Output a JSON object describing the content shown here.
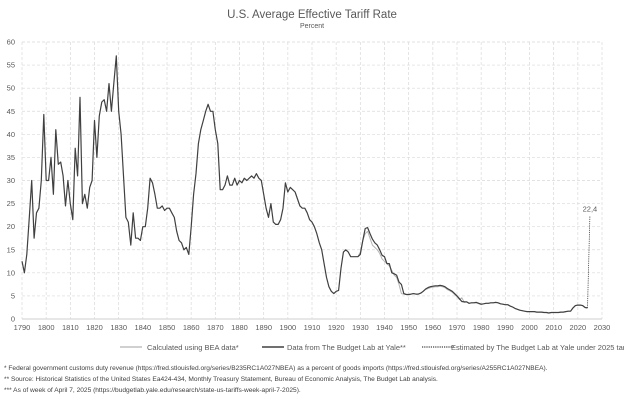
{
  "chart_data": {
    "type": "line",
    "title": "U.S. Average Effective Tariff Rate",
    "subtitle": "Percent",
    "xlim": [
      1790,
      2030
    ],
    "ylim": [
      0,
      60
    ],
    "x_ticks": [
      1790,
      1800,
      1810,
      1820,
      1830,
      1840,
      1850,
      1860,
      1870,
      1880,
      1890,
      1900,
      1910,
      1920,
      1930,
      1940,
      1950,
      1960,
      1970,
      1980,
      1990,
      2000,
      2010,
      2020,
      2030
    ],
    "y_ticks": [
      0,
      5,
      10,
      15,
      20,
      25,
      30,
      35,
      40,
      45,
      50,
      55,
      60
    ],
    "grid": true,
    "legend_position": "bottom",
    "colors": {
      "bea": "#b3b3b3",
      "yale": "#404040",
      "estimate": "#404040",
      "grid": "#d9d9d9"
    },
    "series": [
      {
        "name": "Calculated using BEA data*",
        "style": "solid-light",
        "start_year": 1929,
        "values": [
          13.5,
          14.5,
          17,
          18.5,
          19,
          17.5,
          16,
          15.5,
          15,
          14.2,
          13,
          12.5,
          12,
          11.5,
          10.5,
          9.5,
          9,
          7.5,
          5.5,
          5.4,
          5.3,
          5.3,
          5.4,
          5.5,
          5.4,
          5.4,
          5.6,
          6,
          6.4,
          6.6,
          6.8,
          6.9,
          7,
          7,
          7.1,
          7,
          6.8,
          6.4,
          6.1,
          5.8,
          5.3,
          4.8,
          4.2,
          4.6,
          3.6,
          3.7,
          3.4,
          3.5,
          3.5,
          3.5,
          3.3,
          3.1,
          3.3,
          3.4,
          3.4,
          3.5,
          3.5,
          3.6,
          3.5,
          3.3,
          3.2,
          3.1,
          3.1,
          2.8,
          2.6,
          2.3,
          2.1,
          1.9,
          1.8,
          1.7,
          1.6,
          1.6,
          1.6,
          1.6,
          1.5,
          1.5,
          1.5,
          1.4,
          1.4,
          1.3,
          1.4,
          1.4,
          1.4,
          1.4,
          1.5,
          1.5,
          1.6,
          1.7,
          1.7,
          2.4,
          2.9,
          3,
          3,
          2.9,
          2.5,
          2.4
        ]
      },
      {
        "name": "Data from The Budget Lab at Yale**",
        "style": "solid-dark",
        "start_year": 1790,
        "values": [
          12.5,
          10,
          14,
          22,
          30,
          17.5,
          23,
          24,
          30,
          44.3,
          30,
          30,
          35,
          27,
          41,
          33.5,
          34,
          31,
          24.5,
          30,
          25,
          21.5,
          37,
          31,
          48,
          25,
          27,
          24,
          28.5,
          30,
          43,
          35,
          44,
          47,
          47.5,
          45,
          51,
          45,
          51,
          57,
          45,
          40,
          31,
          22,
          21,
          16,
          23,
          17.5,
          17.5,
          17,
          20,
          20,
          24,
          30.5,
          29.5,
          27,
          24,
          24,
          24.5,
          23.5,
          24,
          24,
          23,
          22,
          19,
          17,
          16.5,
          15,
          15.5,
          14,
          20,
          27,
          31.5,
          38,
          41,
          43,
          45,
          46.5,
          45,
          45,
          41,
          38,
          28,
          28,
          29,
          31,
          29,
          29,
          30.5,
          29,
          30,
          29.5,
          30.5,
          30,
          30.5,
          31,
          30.5,
          31.5,
          30.5,
          30,
          27,
          24,
          22,
          25,
          21,
          20.5,
          20.5,
          21.5,
          24,
          29.5,
          27.5,
          28.5,
          28,
          27.5,
          26,
          24.5,
          24,
          24,
          23,
          21.5,
          21,
          20,
          18.5,
          16.5,
          15,
          12,
          9,
          7,
          6,
          5.5,
          6,
          6.2,
          11,
          14.5,
          15,
          14.5,
          13.5,
          13.5,
          13.5,
          13.5,
          14,
          17,
          19.6,
          19.8,
          18.5,
          17.3,
          16.5,
          16,
          15,
          13.8,
          13.5,
          12,
          12,
          10,
          9.8,
          9.5,
          8,
          7.5,
          5.5,
          5.3,
          5.3,
          5.4,
          5.5,
          5.4,
          5.4,
          5.6,
          6,
          6.5,
          6.8,
          7,
          7.1,
          7.2,
          7.2,
          7.3,
          7.2,
          7,
          6.6,
          6.3,
          6,
          5.5,
          5,
          4.4,
          3.8,
          3.7,
          3.7,
          3.4,
          3.5,
          3.5,
          3.6,
          3.4,
          3.2,
          3.3,
          3.4,
          3.4,
          3.5,
          3.5,
          3.6,
          3.5,
          3.3,
          3.2,
          3.1,
          3.1,
          2.8,
          2.6,
          2.3,
          2.1,
          1.9,
          1.8,
          1.7,
          1.6,
          1.6,
          1.6,
          1.6,
          1.5,
          1.5,
          1.5,
          1.4,
          1.4,
          1.3,
          1.4,
          1.4,
          1.4,
          1.4,
          1.5,
          1.5,
          1.6,
          1.7,
          1.7,
          2.4,
          2.9,
          3,
          3,
          2.9,
          2.5,
          2.4
        ]
      },
      {
        "name": "Estimated by The Budget Lab at Yale under 2025 tariffs to date***",
        "style": "dashed",
        "x": [
          2024,
          2025
        ],
        "values": [
          2.4,
          22.4
        ]
      }
    ],
    "annotations": [
      {
        "x": 2025,
        "y": 22.4,
        "text": "22,4"
      }
    ]
  },
  "footnotes": [
    "* Federal government customs duty revenue (https://fred.stlouisfed.org/series/B235RC1A027NBEA) as a percent of goods imports (https://fred.stlouisfed.org/series/A255RC1A027NBEA).",
    "** Source: Historical Statistics of the United States Ea424-434, Monthly Treasury Statement, Bureau of Economic Analysis, The Budget Lab analysis.",
    "*** As of week of April 7, 2025 (https://budgetlab.yale.edu/research/state-us-tariffs-week-april-7-2025)."
  ]
}
